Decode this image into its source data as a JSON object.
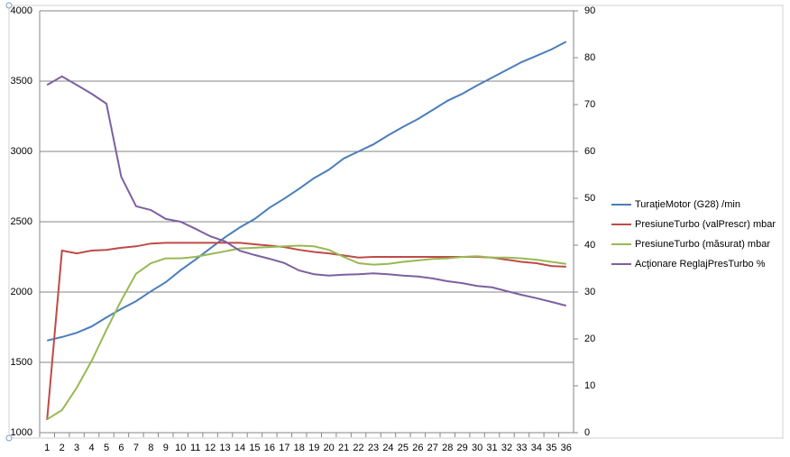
{
  "chart_data": {
    "type": "line",
    "categories": [
      "1",
      "2",
      "3",
      "4",
      "5",
      "6",
      "7",
      "8",
      "9",
      "10",
      "11",
      "12",
      "13",
      "14",
      "15",
      "16",
      "17",
      "18",
      "19",
      "20",
      "21",
      "22",
      "23",
      "24",
      "25",
      "26",
      "27",
      "28",
      "29",
      "30",
      "31",
      "32",
      "33",
      "34",
      "35",
      "36"
    ],
    "series": [
      {
        "name": "TuraţieMotor (G28)  /min",
        "color": "#4a7ebb",
        "values": [
          1655,
          1680,
          1710,
          1755,
          1820,
          1880,
          1935,
          2005,
          2070,
          2155,
          2230,
          2310,
          2390,
          2460,
          2520,
          2600,
          2665,
          2735,
          2810,
          2870,
          2950,
          3000,
          3050,
          3115,
          3175,
          3230,
          3295,
          3360,
          3410,
          3470,
          3525,
          3580,
          3635,
          3680,
          3725,
          3780
        ]
      },
      {
        "name": "PresiuneTurbo (valPrescr)  mbar",
        "color": "#be4b48",
        "values": [
          1090,
          2295,
          2275,
          2295,
          2300,
          2315,
          2325,
          2345,
          2350,
          2350,
          2350,
          2350,
          2350,
          2350,
          2340,
          2330,
          2320,
          2300,
          2285,
          2275,
          2260,
          2245,
          2250,
          2250,
          2250,
          2250,
          2250,
          2250,
          2250,
          2250,
          2245,
          2230,
          2215,
          2205,
          2185,
          2180
        ]
      },
      {
        "name": "PresiuneTurbo (măsurat)  mbar",
        "color": "#98b954",
        "values": [
          1095,
          1160,
          1320,
          1510,
          1730,
          1940,
          2130,
          2205,
          2240,
          2240,
          2250,
          2270,
          2290,
          2310,
          2315,
          2320,
          2325,
          2330,
          2325,
          2300,
          2250,
          2205,
          2195,
          2200,
          2215,
          2225,
          2235,
          2240,
          2250,
          2255,
          2245,
          2245,
          2240,
          2230,
          2215,
          2200
        ]
      },
      {
        "name": "Acţionare ReglajPresTurbo  %",
        "color": "#7d60a0",
        "axis": "y2",
        "values": [
          74.2,
          76,
          74.2,
          72.3,
          70.2,
          54.6,
          48.3,
          47.5,
          45.6,
          45,
          43.5,
          41.9,
          40.8,
          38.8,
          37.9,
          37.1,
          36.2,
          34.6,
          33.8,
          33.5,
          33.7,
          33.8,
          34,
          33.8,
          33.5,
          33.3,
          32.9,
          32.3,
          31.9,
          31.3,
          31,
          30.2,
          29.4,
          28.7,
          27.9,
          27.1
        ]
      }
    ],
    "ylim": [
      1000,
      4000
    ],
    "yticks": [
      1000,
      1500,
      2000,
      2500,
      3000,
      3500,
      4000
    ],
    "y2lim": [
      0,
      90
    ],
    "y2ticks": [
      0,
      10,
      20,
      30,
      40,
      50,
      60,
      70,
      80,
      90
    ],
    "grid": true
  }
}
